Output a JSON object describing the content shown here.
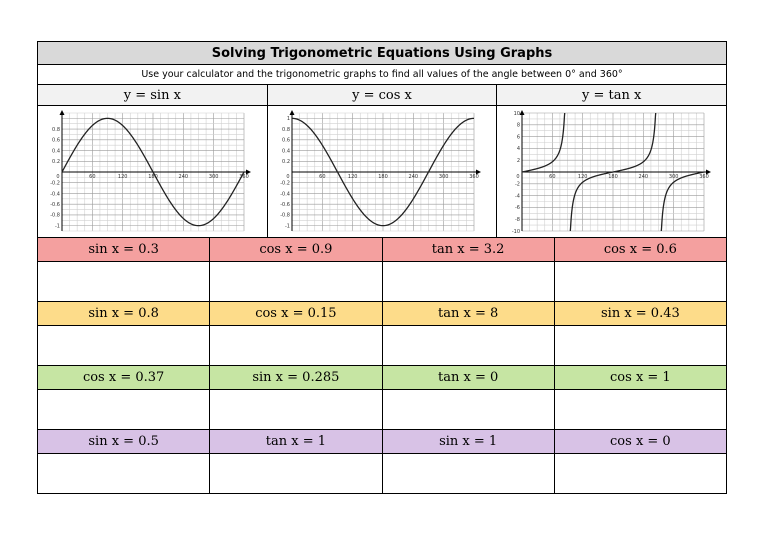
{
  "title": "Solving Trigonometric Equations Using Graphs",
  "instruction": "Use your calculator and the trigonometric graphs to find all values of the angle between 0° and 360°",
  "graph_headers": [
    "y = sin x",
    "y = cos x",
    "y = tan x"
  ],
  "graphs": {
    "sin": {
      "x_ticks": [
        "0",
        "60",
        "120",
        "180",
        "240",
        "300",
        "360"
      ],
      "y_ticks": [
        "0.8",
        "0.6",
        "0.4",
        "0.2",
        "-0.2",
        "-0.4",
        "-0.6",
        "-0.8",
        "-1"
      ]
    },
    "cos": {
      "x_ticks": [
        "0",
        "60",
        "120",
        "180",
        "240",
        "300",
        "360"
      ],
      "y_ticks": [
        "1",
        "0.8",
        "0.6",
        "0.4",
        "0.2",
        "-0.2",
        "-0.4",
        "-0.6",
        "-0.8",
        "-1"
      ]
    },
    "tan": {
      "x_ticks": [
        "0",
        "60",
        "120",
        "180",
        "240",
        "300",
        "360"
      ],
      "y_ticks": [
        "10",
        "8",
        "6",
        "4",
        "2",
        "-2",
        "-4",
        "-6",
        "-8",
        "-10"
      ]
    }
  },
  "equation_rows": [
    {
      "color": "#f4a09f",
      "items": [
        "sin x = 0.3",
        "cos x = 0.9",
        "tan x = 3.2",
        "cos x = 0.6"
      ]
    },
    {
      "color": "#fddc8a",
      "items": [
        "sin x = 0.8",
        "cos x = 0.15",
        "tan x = 8",
        "sin x = 0.43"
      ]
    },
    {
      "color": "#c6e5a3",
      "items": [
        "cos x = 0.37",
        "sin x = 0.285",
        "tan x = 0",
        "cos x = 1"
      ]
    },
    {
      "color": "#d8c2e6",
      "items": [
        "sin x = 0.5",
        "tan x = 1",
        "sin x = 1",
        "cos x = 0"
      ]
    }
  ]
}
